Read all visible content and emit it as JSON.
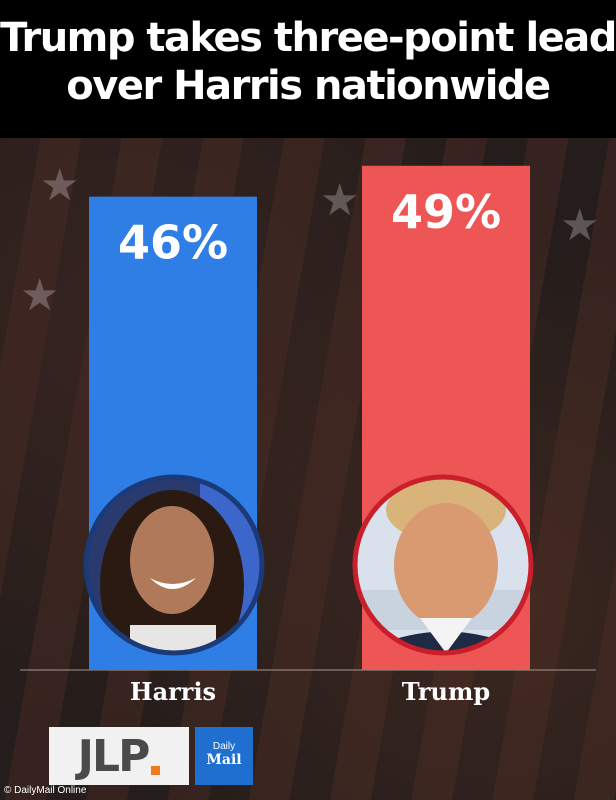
{
  "header": {
    "title_line1": "Trump takes three-point lead",
    "title_line2": "over Harris nationwide"
  },
  "chart_data": {
    "type": "bar",
    "categories": [
      "Harris",
      "Trump"
    ],
    "values": [
      46,
      49
    ],
    "value_labels": [
      "46%",
      "49%"
    ],
    "colors": [
      "#2f7ee6",
      "#ee5555"
    ],
    "ring_colors": [
      "#1b3a78",
      "#c91f2a"
    ],
    "title": "Trump takes three-point lead over Harris nationwide",
    "xlabel": "",
    "ylabel": ""
  },
  "logos": {
    "jlp": "JLP",
    "daily": "Daily",
    "mail": "Mail"
  },
  "credit": "© DailyMail Online"
}
